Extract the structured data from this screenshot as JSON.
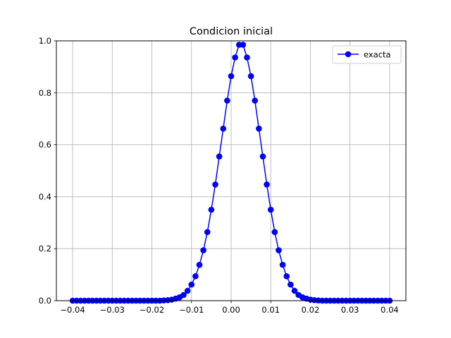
{
  "chart_data": {
    "type": "line",
    "title": "Condicion inicial",
    "xlabel": "",
    "ylabel": "",
    "xlim": [
      -0.0441,
      0.0441
    ],
    "ylim": [
      0,
      1.0
    ],
    "xticks": [
      -0.04,
      -0.03,
      -0.02,
      -0.01,
      0.0,
      0.01,
      0.02,
      0.03,
      0.04
    ],
    "xtick_labels": [
      "−0.04",
      "−0.03",
      "−0.02",
      "−0.01",
      "0.00",
      "0.01",
      "0.02",
      "0.03",
      "0.04"
    ],
    "yticks": [
      0.0,
      0.2,
      0.4,
      0.6,
      0.8,
      1.0
    ],
    "ytick_labels": [
      "0.0",
      "0.2",
      "0.4",
      "0.6",
      "0.8",
      "1.0"
    ],
    "grid": true,
    "legend": {
      "position": "top-right"
    },
    "series": [
      {
        "name": "exacta",
        "color": "#0000ff",
        "marker": "circle",
        "x": [
          -0.04,
          -0.039,
          -0.038,
          -0.037,
          -0.036,
          -0.035,
          -0.034,
          -0.033,
          -0.032,
          -0.031,
          -0.03,
          -0.029,
          -0.028,
          -0.027,
          -0.026,
          -0.025,
          -0.024,
          -0.023,
          -0.022,
          -0.021,
          -0.02,
          -0.019,
          -0.018,
          -0.017,
          -0.016,
          -0.015,
          -0.014,
          -0.013,
          -0.012,
          -0.011,
          -0.01,
          -0.009,
          -0.008,
          -0.007,
          -0.006,
          -0.005,
          -0.004,
          -0.003,
          -0.002,
          -0.001,
          0.0,
          0.001,
          0.002,
          0.003,
          0.004,
          0.005,
          0.006,
          0.007,
          0.008,
          0.009,
          0.01,
          0.011,
          0.012,
          0.013,
          0.014,
          0.015,
          0.016,
          0.017,
          0.018,
          0.019,
          0.02,
          0.021,
          0.022,
          0.023,
          0.024,
          0.025,
          0.026,
          0.027,
          0.028,
          0.029,
          0.03,
          0.031,
          0.032,
          0.033,
          0.034,
          0.035,
          0.036,
          0.037,
          0.038,
          0.039,
          0.04
        ],
        "y": [
          0,
          0,
          0,
          0,
          0,
          0,
          0,
          0,
          0,
          0,
          0,
          0,
          0,
          0,
          0,
          0,
          0,
          0,
          0,
          0,
          0,
          0,
          0,
          0.001,
          0.002,
          0.004,
          0.008,
          0.013,
          0.022,
          0.038,
          0.062,
          0.094,
          0.138,
          0.194,
          0.264,
          0.35,
          0.447,
          0.555,
          0.662,
          0.77,
          0.864,
          0.936,
          0.985,
          0.985,
          0.936,
          0.864,
          0.77,
          0.662,
          0.555,
          0.447,
          0.35,
          0.264,
          0.194,
          0.138,
          0.094,
          0.062,
          0.038,
          0.022,
          0.013,
          0.008,
          0.004,
          0.002,
          0.001,
          0,
          0,
          0,
          0,
          0,
          0,
          0,
          0,
          0,
          0,
          0,
          0,
          0,
          0,
          0,
          0,
          0,
          0
        ]
      }
    ]
  }
}
